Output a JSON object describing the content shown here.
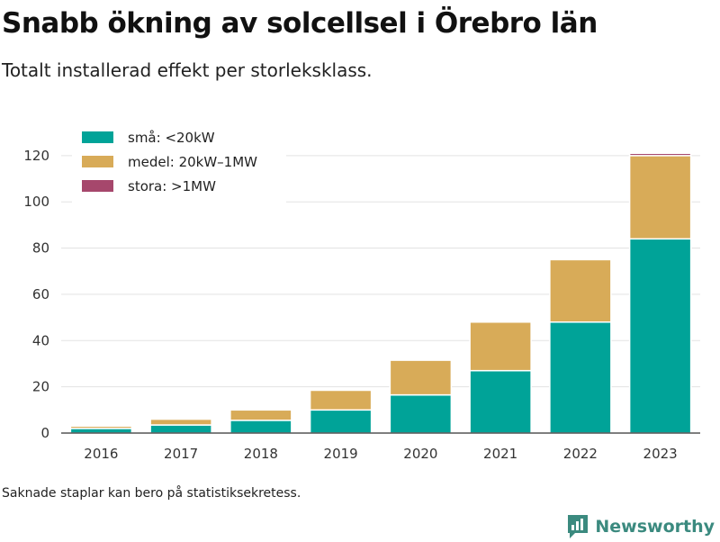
{
  "title": "Snabb ökning av solcellsel i Örebro län",
  "subtitle": "Totalt installerad effekt per storleksklass.",
  "footnote": "Saknade staplar kan bero på statistiksekretess.",
  "brand": {
    "name": "Newsworthy",
    "icon": "newsworthy-logo-icon"
  },
  "colors": {
    "small": "#00a398",
    "medium": "#d8ab58",
    "large": "#a6476c"
  },
  "chart_data": {
    "type": "bar",
    "stacked": true,
    "categories": [
      "2016",
      "2017",
      "2018",
      "2019",
      "2020",
      "2021",
      "2022",
      "2023"
    ],
    "series": [
      {
        "name": "små: <20kW",
        "values": [
          2,
          3.5,
          5.5,
          10,
          16.5,
          27,
          48,
          84
        ]
      },
      {
        "name": "medel: 20kW–1MW",
        "values": [
          1,
          2.5,
          4.5,
          8.5,
          15,
          21,
          27,
          36
        ]
      },
      {
        "name": "stora: >1MW",
        "values": [
          0,
          0,
          0,
          0,
          0,
          0,
          0,
          1
        ]
      }
    ],
    "yticks": [
      0,
      20,
      40,
      60,
      80,
      100,
      120
    ],
    "ylim": [
      0,
      125
    ],
    "grid": "horizontal",
    "legend": "top-left"
  }
}
